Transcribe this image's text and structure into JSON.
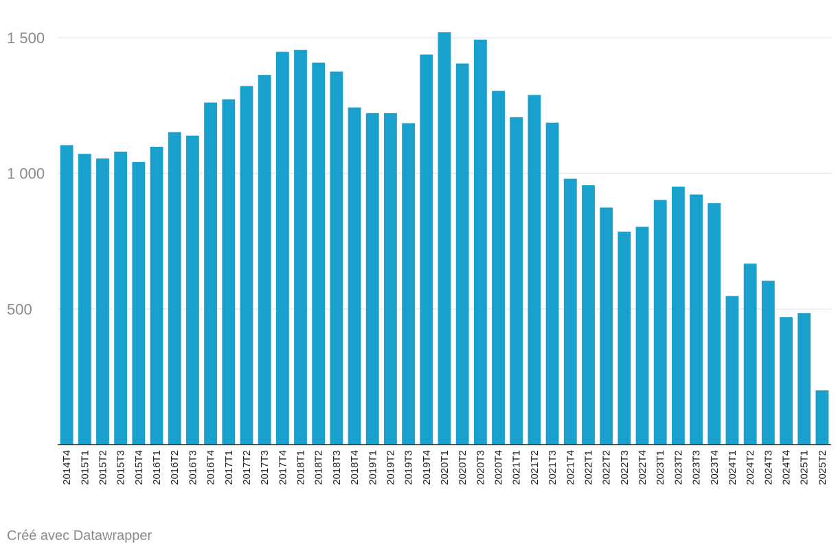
{
  "chart_data": {
    "type": "bar",
    "categories": [
      "2014T4",
      "2015T1",
      "2015T2",
      "2015T3",
      "2015T4",
      "2016T1",
      "2016T2",
      "2016T3",
      "2016T4",
      "2017T1",
      "2017T2",
      "2017T3",
      "2017T4",
      "2018T1",
      "2018T2",
      "2018T3",
      "2018T4",
      "2019T1",
      "2019T2",
      "2019T3",
      "2019T4",
      "2020T1",
      "2020T2",
      "2020T3",
      "2020T4",
      "2021T1",
      "2021T2",
      "2021T3",
      "2021T4",
      "2022T1",
      "2022T2",
      "2022T3",
      "2022T4",
      "2023T1",
      "2023T2",
      "2023T3",
      "2023T4",
      "2024T1",
      "2024T2",
      "2024T3",
      "2024T4",
      "2025T1",
      "2025T2"
    ],
    "values": [
      1104,
      1072,
      1055,
      1080,
      1042,
      1098,
      1152,
      1139,
      1261,
      1273,
      1322,
      1363,
      1448,
      1455,
      1408,
      1375,
      1243,
      1222,
      1222,
      1185,
      1438,
      1520,
      1405,
      1493,
      1304,
      1207,
      1289,
      1187,
      980,
      956,
      874,
      785,
      803,
      902,
      951,
      922,
      890,
      548,
      667,
      604,
      470,
      485,
      200
    ],
    "yticks": [
      500,
      1000,
      1500
    ],
    "ytick_labels": [
      "500",
      "1 000",
      "1 500"
    ],
    "ylim": [
      0,
      1500
    ],
    "grid": true,
    "bar_color": "#19a0cc",
    "title": "",
    "xlabel": "",
    "ylabel": ""
  },
  "footer": {
    "credit": "Créé avec Datawrapper"
  }
}
